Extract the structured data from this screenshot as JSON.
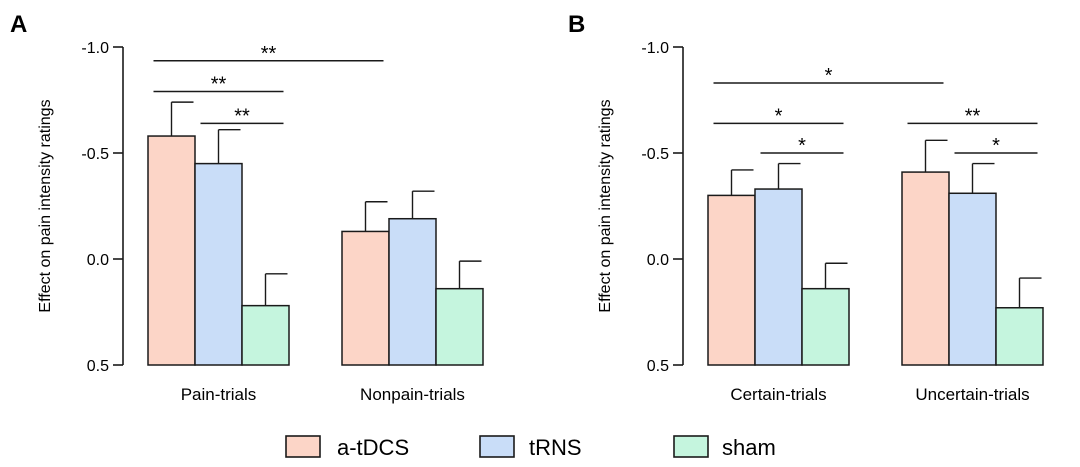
{
  "chart_data": [
    {
      "type": "bar",
      "panel": "A",
      "ylabel": "Effect on pain intensity ratings",
      "ylim": [
        0.5,
        -1.0
      ],
      "y_inverted": true,
      "yticks": [
        "-1.0",
        "-0.5",
        "0.0",
        "0.5"
      ],
      "ytick_values": [
        -1.0,
        -0.5,
        0.0,
        0.5
      ],
      "categories": [
        "Pain-trials",
        "Nonpain-trials"
      ],
      "series": [
        {
          "name": "a-tDCS",
          "values": [
            -0.58,
            -0.13
          ],
          "errors": [
            0.16,
            0.14
          ]
        },
        {
          "name": "tRNS",
          "values": [
            -0.45,
            -0.19
          ],
          "errors": [
            0.16,
            0.13
          ]
        },
        {
          "name": "sham",
          "values": [
            0.22,
            0.14
          ],
          "errors": [
            0.15,
            0.13
          ]
        }
      ],
      "significance": [
        {
          "from": [
            0,
            0
          ],
          "to": [
            1,
            0
          ],
          "label": "**",
          "level": -0.935
        },
        {
          "from": [
            0,
            0
          ],
          "to": [
            0,
            2
          ],
          "label": "**",
          "level": -0.79
        },
        {
          "from": [
            0,
            1
          ],
          "to": [
            0,
            2
          ],
          "label": "**",
          "level": -0.64
        }
      ]
    },
    {
      "type": "bar",
      "panel": "B",
      "ylabel": "Effect on pain intensity ratings",
      "ylim": [
        0.5,
        -1.0
      ],
      "y_inverted": true,
      "yticks": [
        "-1.0",
        "-0.5",
        "0.0",
        "0.5"
      ],
      "ytick_values": [
        -1.0,
        -0.5,
        0.0,
        0.5
      ],
      "categories": [
        "Certain-trials",
        "Uncertain-trials"
      ],
      "series": [
        {
          "name": "a-tDCS",
          "values": [
            -0.3,
            -0.41
          ],
          "errors": [
            0.12,
            0.15
          ]
        },
        {
          "name": "tRNS",
          "values": [
            -0.33,
            -0.31
          ],
          "errors": [
            0.12,
            0.14
          ]
        },
        {
          "name": "sham",
          "values": [
            0.14,
            0.23
          ],
          "errors": [
            0.12,
            0.14
          ]
        }
      ],
      "significance": [
        {
          "from": [
            0,
            0
          ],
          "to": [
            1,
            0
          ],
          "label": "*",
          "level": -0.83
        },
        {
          "from": [
            0,
            0
          ],
          "to": [
            0,
            2
          ],
          "label": "*",
          "level": -0.64
        },
        {
          "from": [
            0,
            1
          ],
          "to": [
            0,
            2
          ],
          "label": "*",
          "level": -0.5
        },
        {
          "from": [
            1,
            0
          ],
          "to": [
            1,
            2
          ],
          "label": "**",
          "level": -0.64
        },
        {
          "from": [
            1,
            1
          ],
          "to": [
            1,
            2
          ],
          "label": "*",
          "level": -0.5
        }
      ]
    }
  ],
  "legend": {
    "placement": "bottom-center",
    "items": [
      {
        "label": "a-tDCS",
        "color": "#fcd5c7"
      },
      {
        "label": "tRNS",
        "color": "#c9ddf8"
      },
      {
        "label": "sham",
        "color": "#c5f5de"
      }
    ]
  },
  "colors": {
    "a-tDCS": "#fcd5c7",
    "tRNS": "#c9ddf8",
    "sham": "#c5f5de",
    "stroke": "#1a1a1a"
  }
}
